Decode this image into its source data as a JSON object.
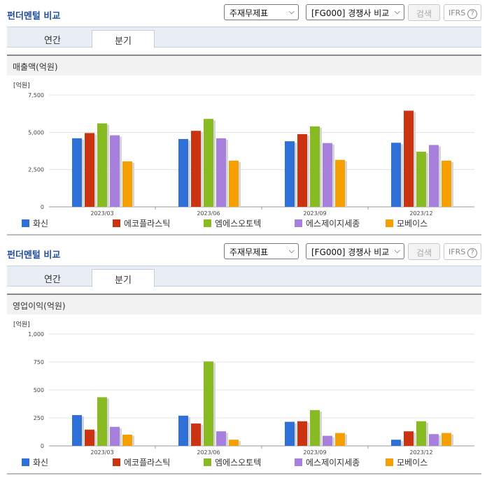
{
  "panels": [
    {
      "title": "펀더멘털 비교",
      "select1": "주재무제표",
      "select2": "[FG000] 경쟁사 비교",
      "search_label": "검색",
      "ifrs_label": "IFRS",
      "tabs": [
        "연간",
        "분기"
      ],
      "active_tab": 1,
      "section_title": "매출액(억원)"
    },
    {
      "title": "펀더멘털 비교",
      "select1": "주재무제표",
      "select2": "[FG000] 경쟁사 비교",
      "search_label": "검색",
      "ifrs_label": "IFRS",
      "tabs": [
        "연간",
        "분기"
      ],
      "active_tab": 1,
      "section_title": "영업이익(억원)"
    }
  ],
  "chart_data": [
    {
      "type": "bar",
      "unit_label": "[억원]",
      "categories": [
        "2023/03",
        "2023/06",
        "2023/09",
        "2023/12"
      ],
      "yticks": [
        "0",
        "2,500",
        "5,000",
        "7,500"
      ],
      "ylim": [
        0,
        7500
      ],
      "grid": true,
      "legend_position": "bottom",
      "series": [
        {
          "name": "화신",
          "color": "#2f6fd8",
          "values": [
            4600,
            4550,
            4400,
            4300
          ]
        },
        {
          "name": "에코플라스틱",
          "color": "#cc3311",
          "values": [
            4950,
            5100,
            4880,
            6450
          ]
        },
        {
          "name": "엠에스오토텍",
          "color": "#88bb22",
          "values": [
            5600,
            5900,
            5400,
            3700
          ]
        },
        {
          "name": "에스제이지세종",
          "color": "#a77fdd",
          "values": [
            4800,
            4600,
            4280,
            4150
          ]
        },
        {
          "name": "모베이스",
          "color": "#f5a000",
          "values": [
            3050,
            3100,
            3150,
            3100
          ]
        }
      ]
    },
    {
      "type": "bar",
      "unit_label": "[억원]",
      "categories": [
        "2023/03",
        "2023/06",
        "2023/09",
        "2023/12"
      ],
      "yticks": [
        "0",
        "250",
        "500",
        "750",
        "1,000"
      ],
      "ylim": [
        0,
        1000
      ],
      "grid": true,
      "legend_position": "bottom",
      "series": [
        {
          "name": "화신",
          "color": "#2f6fd8",
          "values": [
            275,
            270,
            215,
            55
          ]
        },
        {
          "name": "에코플라스틱",
          "color": "#cc3311",
          "values": [
            145,
            200,
            220,
            130
          ]
        },
        {
          "name": "엠에스오토텍",
          "color": "#88bb22",
          "values": [
            435,
            755,
            320,
            220
          ]
        },
        {
          "name": "에스제이지세종",
          "color": "#a77fdd",
          "values": [
            170,
            130,
            90,
            105
          ]
        },
        {
          "name": "모베이스",
          "color": "#f5a000",
          "values": [
            100,
            55,
            115,
            115
          ]
        }
      ]
    }
  ]
}
